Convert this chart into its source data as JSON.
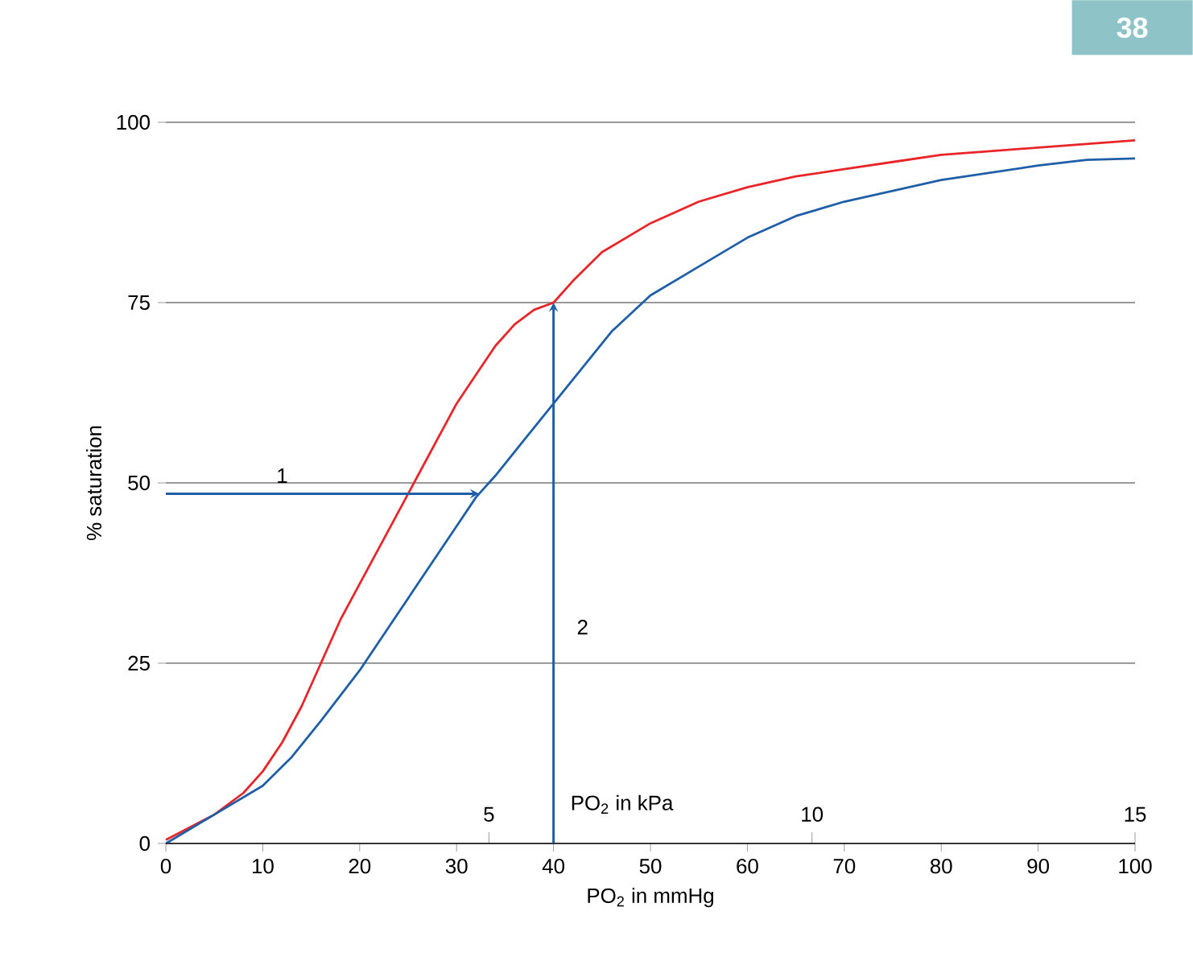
{
  "chart_data": {
    "type": "line",
    "xlabel": "PO$_{2}$ in mmHg",
    "ylabel": "% saturation",
    "x2label": "PO$_{2}$ in kPa",
    "xlim": [
      0,
      100
    ],
    "xticks": [
      0,
      10,
      20,
      30,
      40,
      50,
      60,
      70,
      80,
      90,
      100
    ],
    "ylim": [
      0,
      100
    ],
    "yticks": [
      0,
      25,
      50,
      75,
      100
    ],
    "x2lim": [
      0,
      15
    ],
    "x2ticks": [
      5,
      10,
      15
    ],
    "grid": "y",
    "marker": "none",
    "line_style": "solid",
    "series": [
      {
        "color": "#e8262a",
        "x": [
          0,
          5,
          8,
          10,
          12,
          14,
          16,
          18,
          20,
          22,
          24,
          26,
          28,
          30,
          32,
          34,
          36,
          38,
          40,
          42,
          45,
          50,
          55,
          60,
          65,
          70,
          75,
          80,
          85,
          90,
          95,
          100
        ],
        "values": [
          0.5,
          4,
          7,
          10,
          14,
          19,
          25,
          31,
          36,
          41,
          46,
          51,
          56,
          61,
          65,
          69,
          72,
          74,
          75,
          78,
          82,
          86,
          89,
          91,
          92.5,
          93.5,
          94.5,
          95.5,
          96,
          96.5,
          97,
          97.5
        ]
      },
      {
        "color": "#1f5fa8",
        "x": [
          0,
          5,
          10,
          13,
          16,
          20,
          24,
          28,
          30,
          32,
          34,
          37,
          40,
          43,
          46,
          50,
          55,
          60,
          65,
          70,
          75,
          80,
          85,
          90,
          95,
          100
        ],
        "values": [
          0,
          4,
          8,
          12,
          17,
          24,
          32,
          40,
          44,
          48,
          51,
          56,
          61,
          66,
          71,
          76,
          80,
          84,
          87,
          89,
          90.5,
          92,
          93,
          94,
          94.8,
          95
        ]
      }
    ],
    "annotations": [
      "1",
      "2",
      "38"
    ]
  }
}
